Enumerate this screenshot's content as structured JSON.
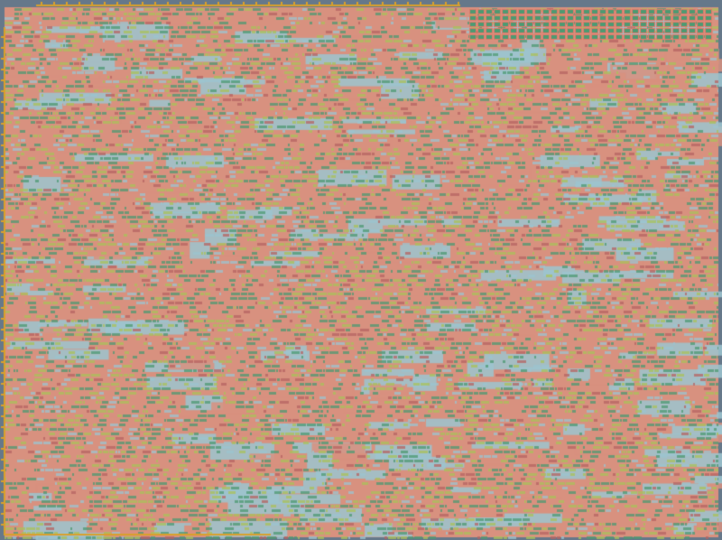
{
  "view": {
    "type": "chip-layout",
    "colors": {
      "background": "#66788a",
      "standard_cell_fill": "#d8917f",
      "macro_blue": "#9cc4cf",
      "cell_green": "#4e9a72",
      "metal_yellow_green": "#a9c25a",
      "dense_red": "#b56462",
      "io_ring_orange": "#d9a02c",
      "row_outline": "#e07a6a"
    }
  }
}
